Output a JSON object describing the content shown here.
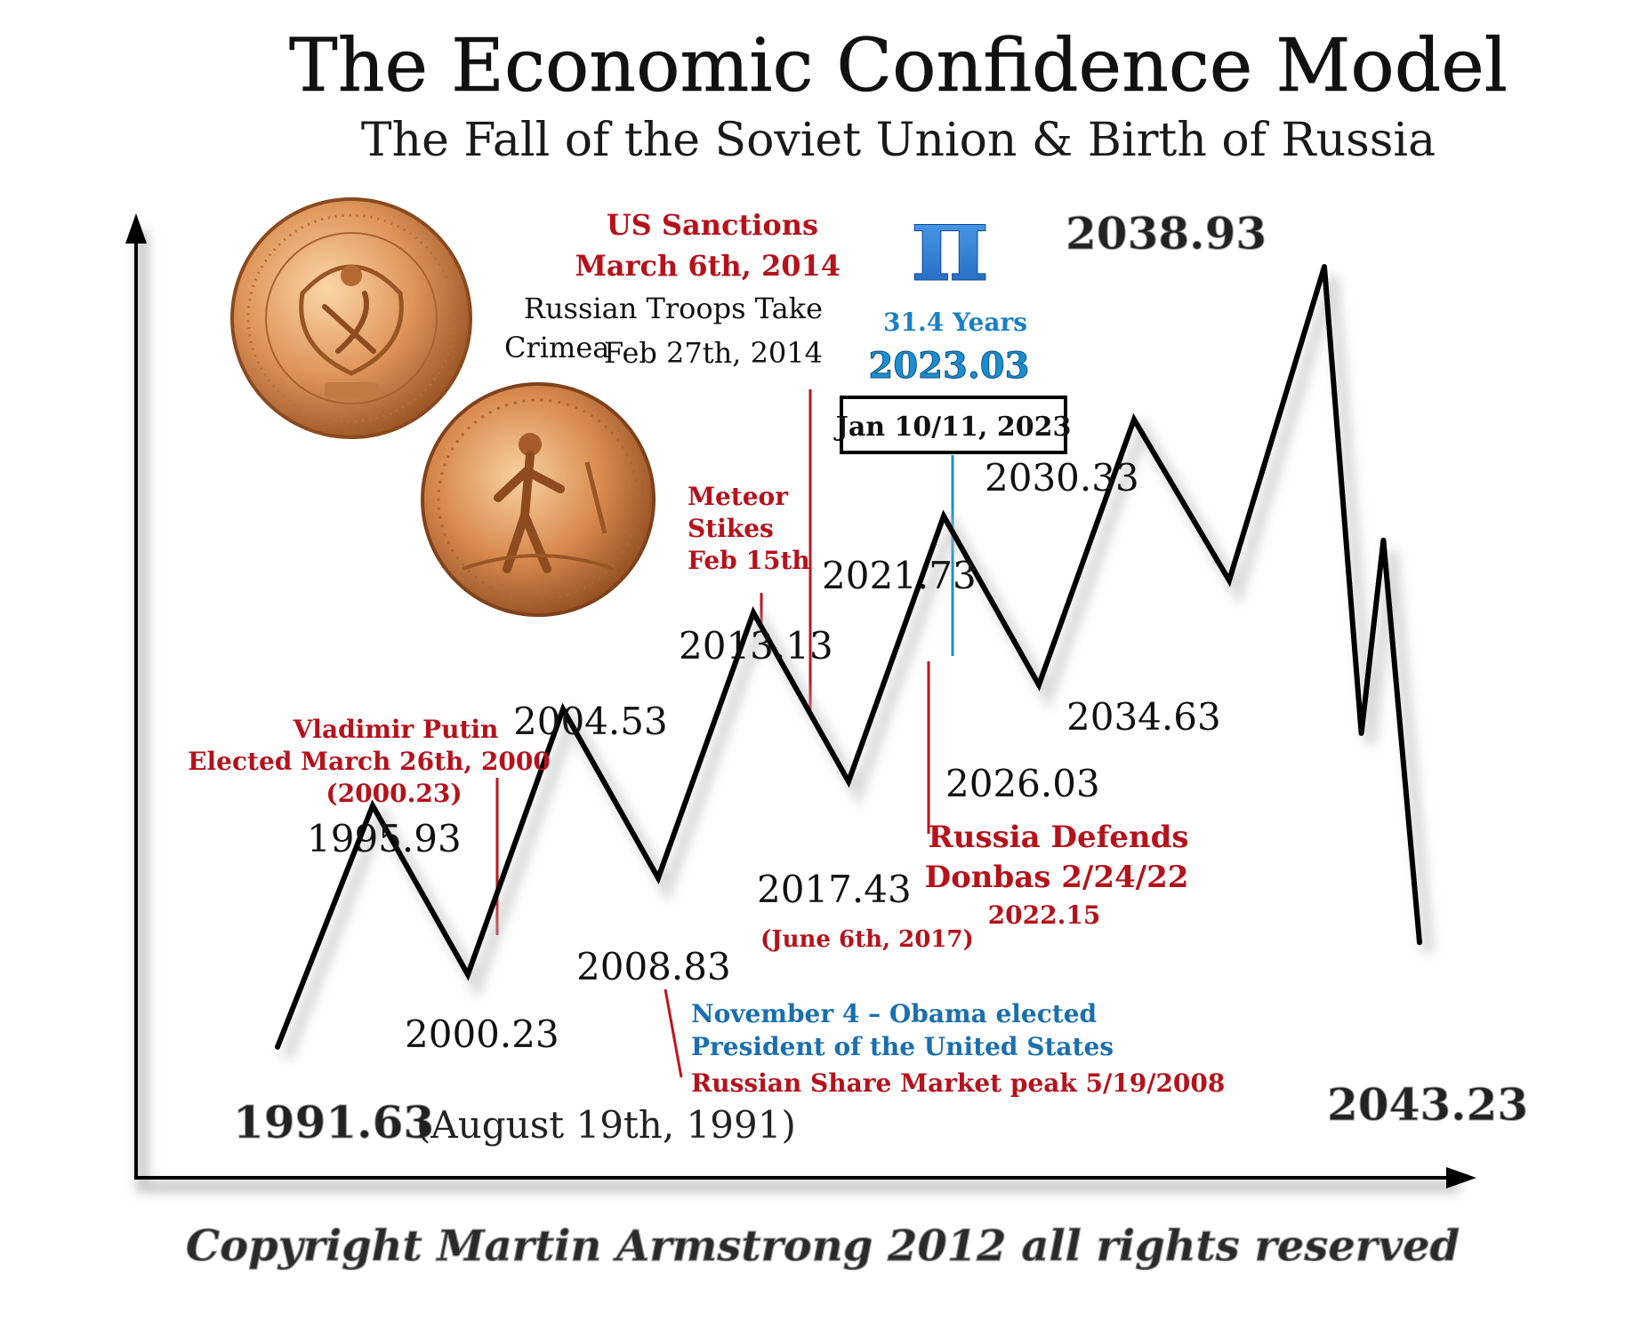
{
  "title": "The Economic Confidence Model",
  "subtitle": "The Fall of the Soviet Union & Birth of Russia",
  "copyright": "Copyright Martin Armstrong 2012 all rights reserved",
  "colors": {
    "line": "#000000",
    "event_red": "#c0141c",
    "event_blue": "#1a7fc4",
    "pi_blue": "#2a7fd8",
    "coin_gold": "#d98a4e"
  },
  "illustrations": [
    {
      "name": "gold-coin-emblem-obverse"
    },
    {
      "name": "gold-coin-sower-reverse"
    }
  ],
  "turning_points": [
    {
      "year": 1991.63,
      "label": "1991.63",
      "level": 0.03
    },
    {
      "year": 1995.93,
      "label": "1995.93",
      "level": 0.33
    },
    {
      "year": 2000.23,
      "label": "2000.23",
      "level": 0.12
    },
    {
      "year": 2004.53,
      "label": "2004.53",
      "level": 0.45
    },
    {
      "year": 2008.83,
      "label": "2008.83",
      "level": 0.24
    },
    {
      "year": 2013.13,
      "label": "2013.13",
      "level": 0.57
    },
    {
      "year": 2017.43,
      "label": "2017.43",
      "level": 0.36
    },
    {
      "year": 2021.73,
      "label": "2021.73",
      "level": 0.69
    },
    {
      "year": 2026.03,
      "label": "2026.03",
      "level": 0.48
    },
    {
      "year": 2030.33,
      "label": "2030.33",
      "level": 0.81
    },
    {
      "year": 2034.63,
      "label": "2034.63",
      "level": 0.61
    },
    {
      "year": 2038.93,
      "label": "2038.93",
      "level": 1.0
    },
    {
      "year": 2040.6,
      "label": "",
      "level": 0.42
    },
    {
      "year": 2041.6,
      "label": "",
      "level": 0.66
    },
    {
      "year": 2043.23,
      "label": "2043.23",
      "level": 0.16
    }
  ],
  "annotations": {
    "start_date": "(August 19th, 1991)",
    "putin": [
      "Vladimir Putin",
      "Elected March 26th, 2000",
      "(2000.23)"
    ],
    "obama": [
      "November 4 – Obama elected",
      "President of the United States"
    ],
    "share_peak": "Russian Share Market peak 5/19/2008",
    "meteor": [
      "Meteor",
      "Stikes",
      "Feb 15th"
    ],
    "sanctions": [
      "US Sanctions",
      "March 6th, 2014"
    ],
    "crimea": [
      "Russian Troops Take",
      "Crimea",
      "Feb 27th, 2014"
    ],
    "june_2017": "(June 6th, 2017)",
    "donbas": [
      "Russia Defends",
      "Donbas 2/24/22",
      "2022.15"
    ],
    "pi_symbol": "π",
    "pi_years": "31.4 Years",
    "pi_target": "2023.03",
    "jan_box": "Jan 10/11, 2023"
  }
}
